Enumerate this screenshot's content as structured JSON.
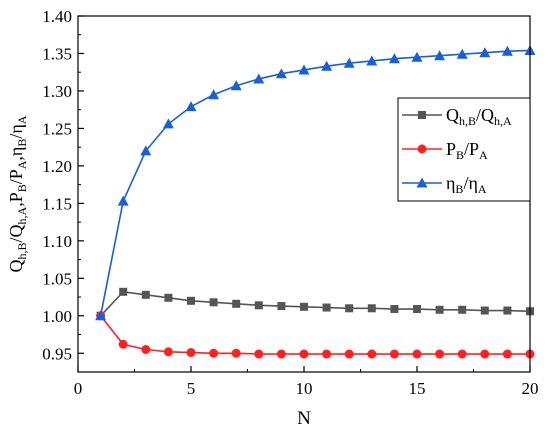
{
  "chart_data": {
    "type": "line",
    "xlabel": "N",
    "ylabel": {
      "parts": [
        {
          "t": "Q",
          "sub": false
        },
        {
          "t": "h,B",
          "sub": true
        },
        {
          "t": "/Q",
          "sub": false
        },
        {
          "t": "h,A",
          "sub": true
        },
        {
          "t": ",P",
          "sub": false
        },
        {
          "t": "B",
          "sub": true
        },
        {
          "t": "/P",
          "sub": false
        },
        {
          "t": "A",
          "sub": true
        },
        {
          "t": ",η",
          "sub": false
        },
        {
          "t": "B",
          "sub": true
        },
        {
          "t": "/η",
          "sub": false
        },
        {
          "t": "A",
          "sub": true
        }
      ]
    },
    "xlim": [
      0,
      20
    ],
    "ylim": [
      0.925,
      1.4
    ],
    "xticks": [
      0,
      5,
      10,
      15,
      20
    ],
    "xtick_labels": [
      "0",
      "5",
      "10",
      "15",
      "20"
    ],
    "yticks": [
      0.95,
      1.0,
      1.05,
      1.1,
      1.15,
      1.2,
      1.25,
      1.3,
      1.35,
      1.4
    ],
    "ytick_labels": [
      "0.95",
      "1.00",
      "1.05",
      "1.10",
      "1.15",
      "1.20",
      "1.25",
      "1.30",
      "1.35",
      "1.40"
    ],
    "legend_position": "right-center",
    "grid": false,
    "x": [
      1,
      2,
      3,
      4,
      5,
      6,
      7,
      8,
      9,
      10,
      11,
      12,
      13,
      14,
      15,
      16,
      17,
      18,
      19,
      20
    ],
    "series": [
      {
        "key": "q",
        "legend": {
          "parts": [
            {
              "t": "Q",
              "sub": false
            },
            {
              "t": "h,B",
              "sub": true
            },
            {
              "t": "/Q",
              "sub": false
            },
            {
              "t": "h,A",
              "sub": true
            }
          ]
        },
        "color": "#555555",
        "marker": "square",
        "values": [
          1.0,
          1.032,
          1.028,
          1.024,
          1.02,
          1.018,
          1.016,
          1.014,
          1.013,
          1.012,
          1.011,
          1.01,
          1.01,
          1.009,
          1.009,
          1.008,
          1.008,
          1.007,
          1.007,
          1.006
        ]
      },
      {
        "key": "p",
        "legend": {
          "parts": [
            {
              "t": "P",
              "sub": false
            },
            {
              "t": "B",
              "sub": true
            },
            {
              "t": "/P",
              "sub": false
            },
            {
              "t": "A",
              "sub": true
            }
          ]
        },
        "color": "#ff2020",
        "marker": "circle",
        "values": [
          1.0,
          0.962,
          0.955,
          0.952,
          0.951,
          0.95,
          0.95,
          0.949,
          0.949,
          0.949,
          0.949,
          0.949,
          0.949,
          0.949,
          0.949,
          0.949,
          0.949,
          0.949,
          0.949,
          0.949
        ]
      },
      {
        "key": "eta",
        "legend": {
          "parts": [
            {
              "t": "η",
              "sub": false
            },
            {
              "t": "B",
              "sub": true
            },
            {
              "t": "/η",
              "sub": false
            },
            {
              "t": "A",
              "sub": true
            }
          ]
        },
        "color": "#1a5fd6",
        "marker": "triangle",
        "values": [
          1.0,
          1.153,
          1.22,
          1.256,
          1.279,
          1.295,
          1.307,
          1.316,
          1.323,
          1.328,
          1.333,
          1.337,
          1.34,
          1.343,
          1.345,
          1.347,
          1.349,
          1.351,
          1.353,
          1.354
        ]
      }
    ]
  }
}
